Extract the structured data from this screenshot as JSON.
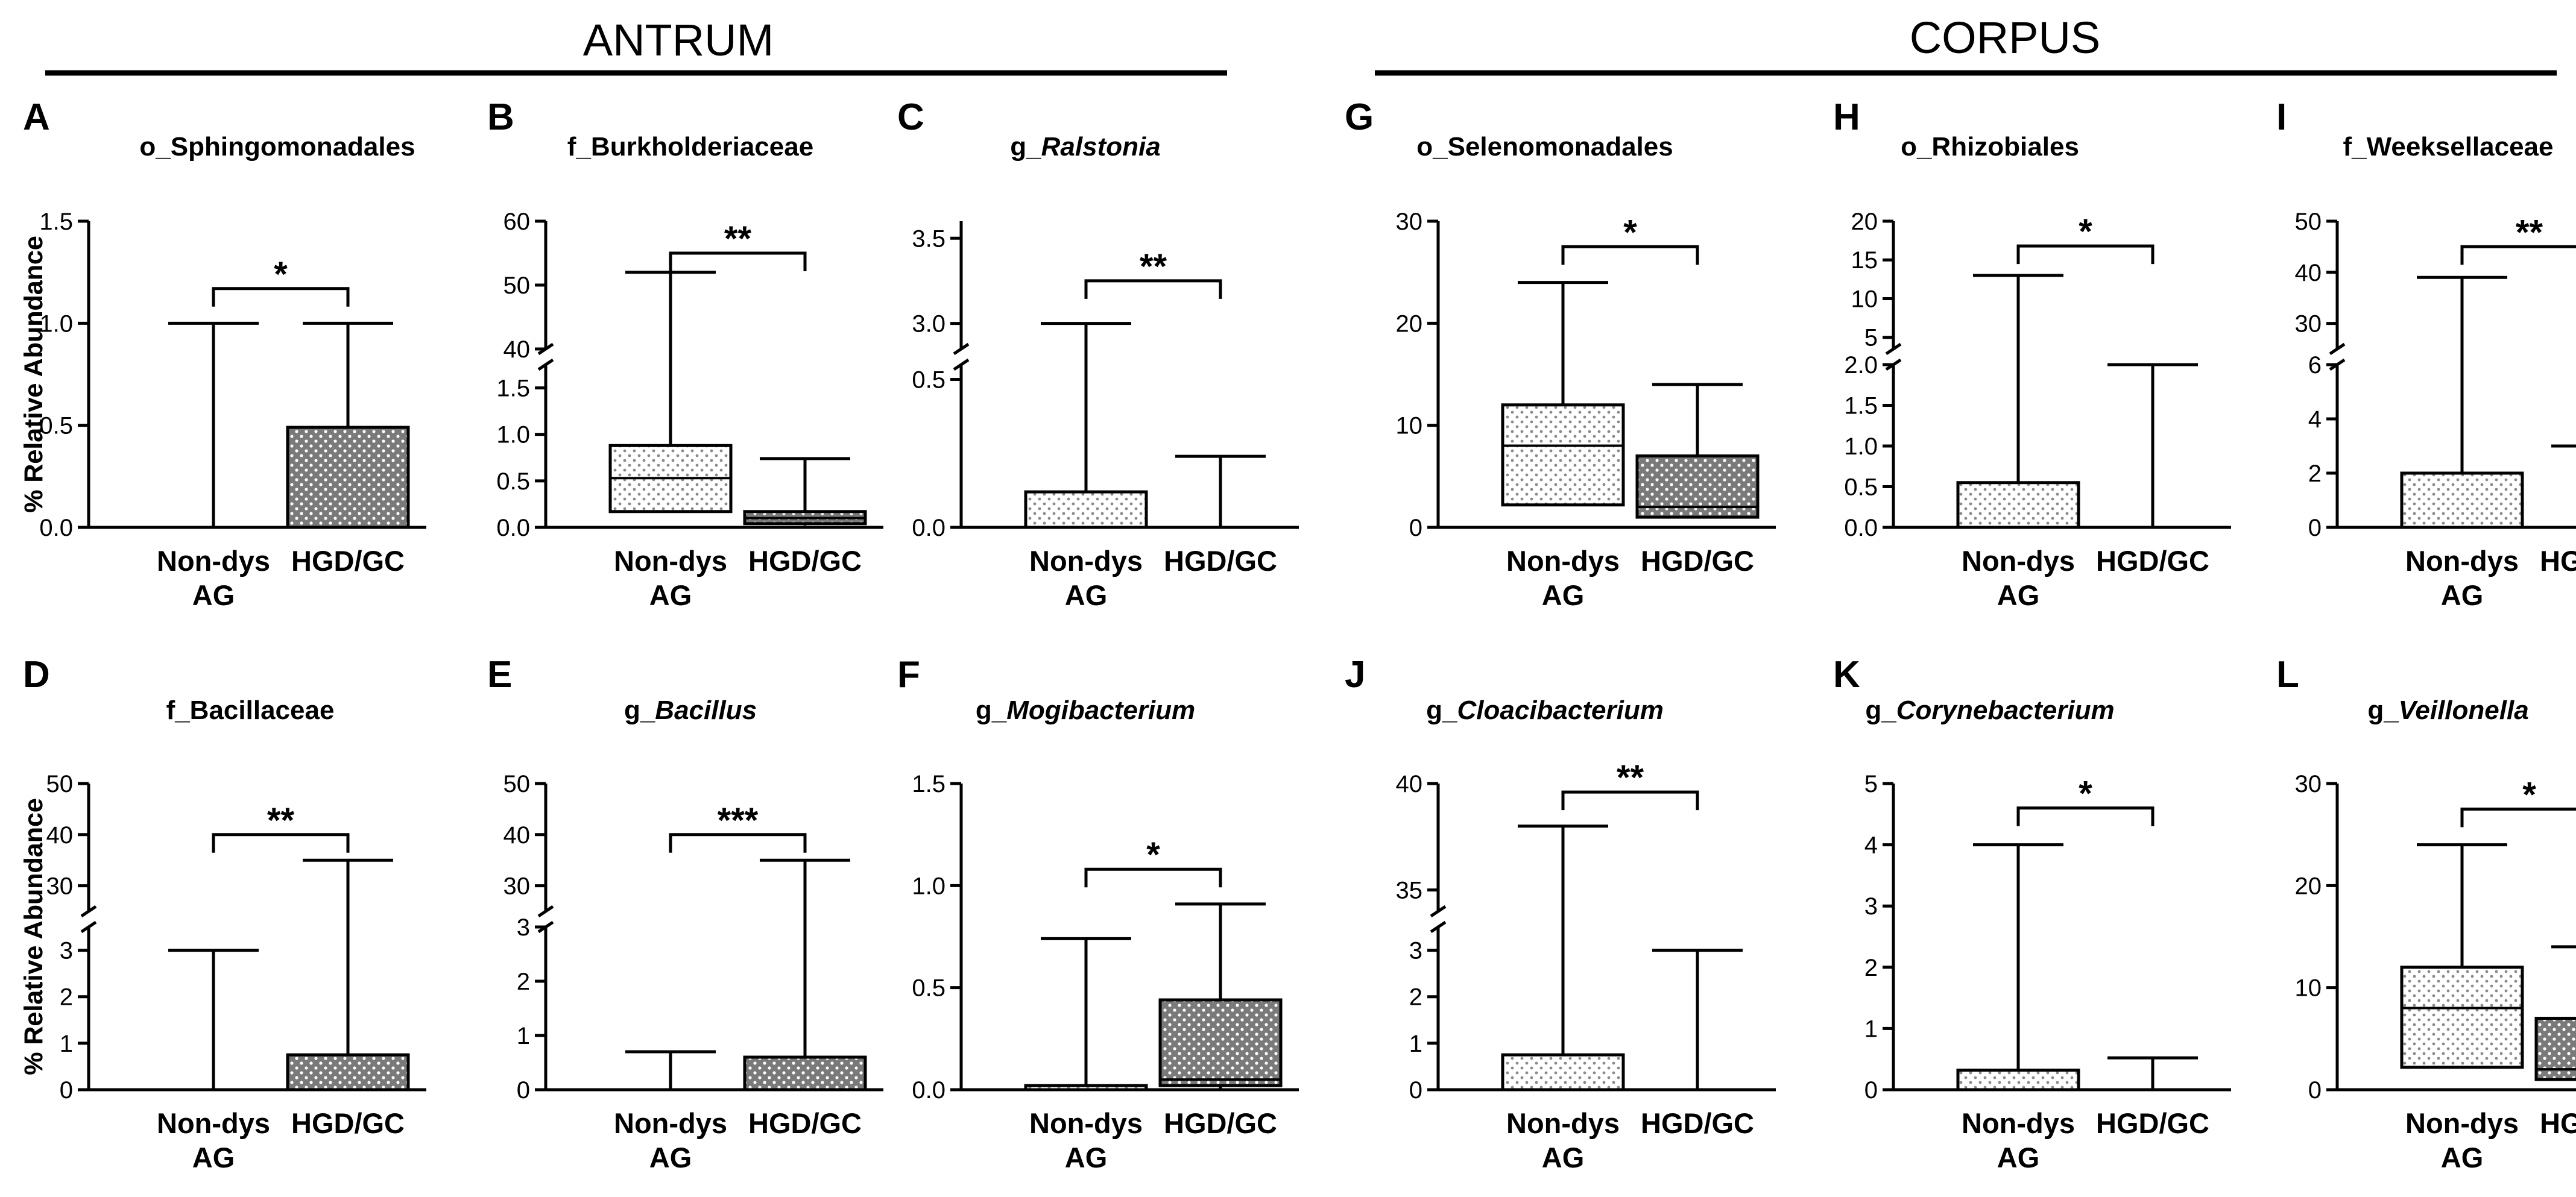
{
  "sections": [
    {
      "title": "ANTRUM"
    },
    {
      "title": "CORPUS"
    }
  ],
  "colors": {
    "box_dark": "#7a7a7a",
    "box_light": "#ffffff",
    "dot_dark": "#ffffff",
    "dot_light": "#8a8a8a",
    "line": "#000000"
  },
  "chart_data": [
    {
      "type": "box",
      "panel": "A",
      "title": "o_Sphingomonadales",
      "title_italic": "",
      "ylabel": "% Relative Abundance",
      "categories": [
        "Non-dys AG",
        "HGD/GC"
      ],
      "yticks": [
        0.0,
        0.5,
        1.0,
        1.5
      ],
      "ytick_labels": [
        "0.0",
        "0.5",
        "1.0",
        "1.5"
      ],
      "ylim": [
        0,
        1.5
      ],
      "boxes": [
        {
          "min": 0,
          "q1": 0,
          "median": 0,
          "q3": 0,
          "max": 1.0
        },
        {
          "min": 0,
          "q1": 0,
          "median": 0,
          "q3": 0.49,
          "max": 1.0
        }
      ],
      "significance": "*",
      "sig_y": 1.17
    },
    {
      "type": "box",
      "panel": "B",
      "title": "f_Burkholderiaceae",
      "title_italic": "",
      "ylabel": "",
      "categories": [
        "Non-dys AG",
        "HGD/GC"
      ],
      "break": {
        "low": [
          0,
          1.75
        ],
        "high": [
          40,
          60
        ]
      },
      "yticks": [
        0.0,
        0.5,
        1.0,
        1.5,
        40,
        50,
        60
      ],
      "ytick_labels": [
        "0.0",
        "0.5",
        "1.0",
        "1.5",
        "40",
        "50",
        "60"
      ],
      "ylim": [
        0,
        60
      ],
      "boxes": [
        {
          "min": 0.17,
          "q1": 0.17,
          "median": 0.53,
          "q3": 0.88,
          "max": 52
        },
        {
          "min": 0.02,
          "q1": 0.04,
          "median": 0.1,
          "q3": 0.17,
          "max": 0.74
        }
      ],
      "significance": "**",
      "sig_y": 55
    },
    {
      "type": "box",
      "panel": "C",
      "title": "g_",
      "title_italic": "Ralstonia",
      "ylabel": "",
      "categories": [
        "Non-dys AG",
        "HGD/GC"
      ],
      "break": {
        "low": [
          0,
          0.55
        ],
        "high": [
          2.85,
          3.6
        ]
      },
      "yticks": [
        0.0,
        0.5,
        3.0,
        3.5
      ],
      "ytick_labels": [
        "0.0",
        "0.5",
        "3.0",
        "3.5"
      ],
      "ylim": [
        0,
        3.6
      ],
      "boxes": [
        {
          "min": 0,
          "q1": 0,
          "median": 0,
          "q3": 0.12,
          "max": 3.0
        },
        {
          "min": 0,
          "q1": 0,
          "median": 0,
          "q3": 0,
          "max": 0.24
        }
      ],
      "significance": "**",
      "sig_y": 3.25
    },
    {
      "type": "box",
      "panel": "G",
      "title": "o_Selenomonadales",
      "title_italic": "",
      "ylabel": "% Relative Abundance",
      "categories": [
        "Non-dys AG",
        "HGD/GC"
      ],
      "yticks": [
        0,
        10,
        20,
        30
      ],
      "ytick_labels": [
        "0",
        "10",
        "20",
        "30"
      ],
      "ylim": [
        0,
        30
      ],
      "boxes": [
        {
          "min": 2.2,
          "q1": 2.2,
          "median": 8,
          "q3": 12,
          "max": 24
        },
        {
          "min": 1,
          "q1": 1,
          "median": 2,
          "q3": 7,
          "max": 14
        }
      ],
      "significance": "*",
      "sig_y": 27.5
    },
    {
      "type": "box",
      "panel": "H",
      "title": "o_Rhizobiales",
      "title_italic": "",
      "ylabel": "",
      "categories": [
        "Non-dys AG",
        "HGD/GC"
      ],
      "break": {
        "low": [
          0,
          2.0
        ],
        "high": [
          3.5,
          20
        ]
      },
      "yticks": [
        0.0,
        0.5,
        1.0,
        1.5,
        2.0,
        5,
        10,
        15,
        20
      ],
      "ytick_labels": [
        "0.0",
        "0.5",
        "1.0",
        "1.5",
        "2.0",
        "5",
        "10",
        "15",
        "20"
      ],
      "ylim": [
        0,
        20
      ],
      "boxes": [
        {
          "min": 0,
          "q1": 0,
          "median": 0,
          "q3": 0.55,
          "max": 13
        },
        {
          "min": 0,
          "q1": 0,
          "median": 0,
          "q3": 0,
          "max": 2.0
        }
      ],
      "significance": "*",
      "sig_y": 16.8
    },
    {
      "type": "box",
      "panel": "I",
      "title": "f_Weeksellaceae",
      "title_italic": "",
      "ylabel": "",
      "categories": [
        "Non-dys AG",
        "HGD/GC"
      ],
      "break": {
        "low": [
          0,
          6
        ],
        "high": [
          25,
          50
        ]
      },
      "yticks": [
        0,
        2,
        4,
        6,
        30,
        40,
        50
      ],
      "ytick_labels": [
        "0",
        "2",
        "4",
        "6",
        "30",
        "40",
        "50"
      ],
      "ylim": [
        0,
        50
      ],
      "boxes": [
        {
          "min": 0,
          "q1": 0,
          "median": 0,
          "q3": 2,
          "max": 39
        },
        {
          "min": 0,
          "q1": 0,
          "median": 0,
          "q3": 0,
          "max": 3
        }
      ],
      "significance": "**",
      "sig_y": 45
    },
    {
      "type": "box",
      "panel": "D",
      "title": "f_Bacillaceae",
      "title_italic": "",
      "ylabel": "% Relative Abundance",
      "categories": [
        "Non-dys AG",
        "HGD/GC"
      ],
      "break": {
        "low": [
          0,
          3.5
        ],
        "high": [
          25,
          50
        ]
      },
      "yticks": [
        0,
        1,
        2,
        3,
        30,
        40,
        50
      ],
      "ytick_labels": [
        "0",
        "1",
        "2",
        "3",
        "30",
        "40",
        "50"
      ],
      "ylim": [
        0,
        50
      ],
      "boxes": [
        {
          "min": 0,
          "q1": 0,
          "median": 0,
          "q3": 0,
          "max": 3
        },
        {
          "min": 0,
          "q1": 0,
          "median": 0,
          "q3": 0.75,
          "max": 35
        }
      ],
      "significance": "**",
      "sig_y": 40
    },
    {
      "type": "box",
      "panel": "E",
      "title": "g_",
      "title_italic": "Bacillus",
      "ylabel": "",
      "categories": [
        "Non-dys AG",
        "HGD/GC"
      ],
      "break": {
        "low": [
          0,
          3
        ],
        "high": [
          25,
          50
        ]
      },
      "yticks": [
        0,
        1,
        2,
        3,
        30,
        40,
        50
      ],
      "ytick_labels": [
        "0",
        "1",
        "2",
        "3",
        "30",
        "40",
        "50"
      ],
      "ylim": [
        0,
        50
      ],
      "boxes": [
        {
          "min": 0,
          "q1": 0,
          "median": 0,
          "q3": 0,
          "max": 0.7
        },
        {
          "min": 0,
          "q1": 0,
          "median": 0,
          "q3": 0.6,
          "max": 35
        }
      ],
      "significance": "***",
      "sig_y": 40
    },
    {
      "type": "box",
      "panel": "F",
      "title": "g_",
      "title_italic": "Mogibacterium",
      "ylabel": "",
      "categories": [
        "Non-dys AG",
        "HGD/GC"
      ],
      "yticks": [
        0.0,
        0.5,
        1.0,
        1.5
      ],
      "ytick_labels": [
        "0.0",
        "0.5",
        "1.0",
        "1.5"
      ],
      "ylim": [
        0,
        1.5
      ],
      "boxes": [
        {
          "min": 0,
          "q1": 0,
          "median": 0,
          "q3": 0.02,
          "max": 0.74
        },
        {
          "min": 0,
          "q1": 0.02,
          "median": 0.05,
          "q3": 0.44,
          "max": 0.91
        }
      ],
      "significance": "*",
      "sig_y": 1.08
    },
    {
      "type": "box",
      "panel": "J",
      "title": "g_",
      "title_italic": "Cloacibacterium",
      "ylabel": "% Relative Abundance",
      "categories": [
        "Non-dys AG",
        "HGD/GC"
      ],
      "break": {
        "low": [
          0,
          3.5
        ],
        "high": [
          34,
          40
        ]
      },
      "yticks": [
        0,
        1,
        2,
        3,
        35,
        40
      ],
      "ytick_labels": [
        "0",
        "1",
        "2",
        "3",
        "35",
        "40"
      ],
      "ylim": [
        0,
        40
      ],
      "boxes": [
        {
          "min": 0,
          "q1": 0,
          "median": 0,
          "q3": 0.75,
          "max": 38
        },
        {
          "min": 0,
          "q1": 0,
          "median": 0,
          "q3": 0,
          "max": 3
        }
      ],
      "significance": "**",
      "sig_y": 39.6
    },
    {
      "type": "box",
      "panel": "K",
      "title": "g_",
      "title_italic": "Corynebacterium",
      "ylabel": "",
      "categories": [
        "Non-dys AG",
        "HGD/GC"
      ],
      "yticks": [
        0,
        1,
        2,
        3,
        4,
        5
      ],
      "ytick_labels": [
        "0",
        "1",
        "2",
        "3",
        "4",
        "5"
      ],
      "ylim": [
        0,
        5
      ],
      "boxes": [
        {
          "min": 0,
          "q1": 0,
          "median": 0,
          "q3": 0.32,
          "max": 4
        },
        {
          "min": 0,
          "q1": 0,
          "median": 0,
          "q3": 0,
          "max": 0.52
        }
      ],
      "significance": "*",
      "sig_y": 4.6
    },
    {
      "type": "box",
      "panel": "L",
      "title": "g_",
      "title_italic": "Veillonella",
      "ylabel": "",
      "categories": [
        "Non-dys AG",
        "HGD/GC"
      ],
      "yticks": [
        0,
        10,
        20,
        30
      ],
      "ytick_labels": [
        "0",
        "10",
        "20",
        "30"
      ],
      "ylim": [
        0,
        30
      ],
      "boxes": [
        {
          "min": 2.2,
          "q1": 2.2,
          "median": 8,
          "q3": 12,
          "max": 24
        },
        {
          "min": 1,
          "q1": 1,
          "median": 2,
          "q3": 7,
          "max": 14
        }
      ],
      "significance": "*",
      "sig_y": 27.5
    }
  ]
}
